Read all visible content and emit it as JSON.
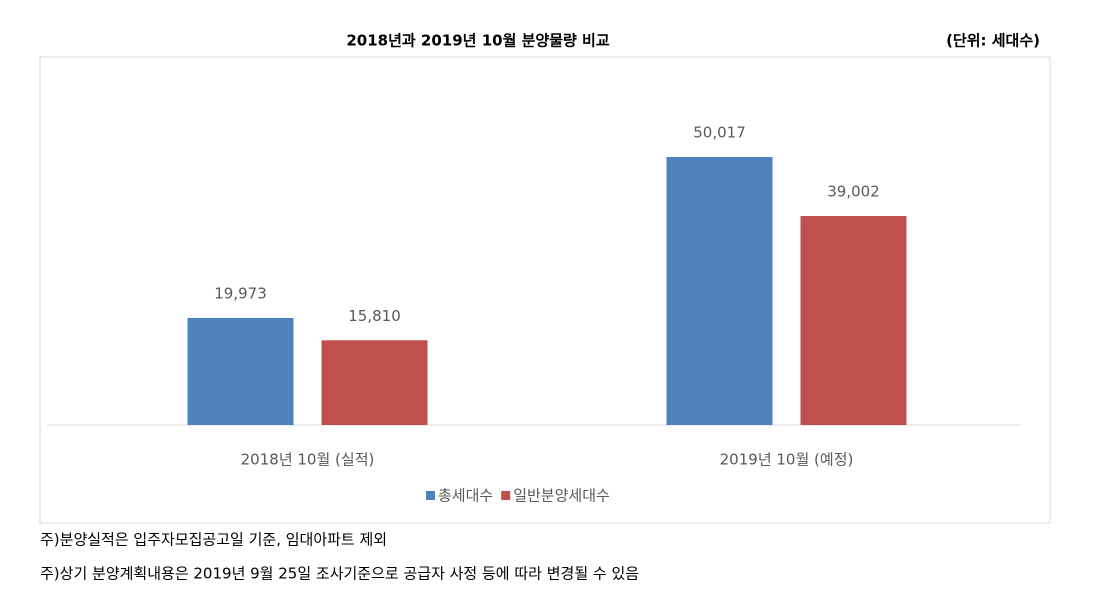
{
  "chart_data": {
    "type": "bar",
    "title": "2018년과 2019년 10월 분양물량 비교",
    "unit": "(단위: 세대수)",
    "categories": [
      "2018년 10월 (실적)",
      "2019년 10월 (예정)"
    ],
    "series": [
      {
        "name": "총세대수",
        "color": "#4f81bd",
        "values": [
          19973,
          50017
        ],
        "value_labels": [
          "19,973",
          "50,017"
        ]
      },
      {
        "name": "일반분양세대수",
        "color": "#c0504d",
        "values": [
          15810,
          39002
        ],
        "value_labels": [
          "15,810",
          "39,002"
        ]
      }
    ],
    "ylim": [
      0,
      60000
    ],
    "legend": "bottom",
    "notes": [
      "주)분양실적은 입주자모집공고일 기준, 임대아파트 제외",
      "주)상기 분양계획내용은 2019년 9월 25일 조사기준으로 공급자 사정 등에 따라 변경될 수 있음"
    ]
  }
}
